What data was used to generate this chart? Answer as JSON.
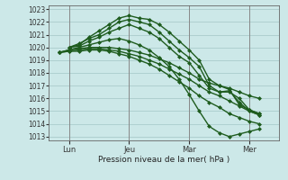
{
  "bg_color": "#cce8e8",
  "grid_color": "#aacccc",
  "line_color": "#1e5c1e",
  "ylim": [
    1013,
    1023
  ],
  "yticks": [
    1013,
    1014,
    1015,
    1016,
    1017,
    1018,
    1019,
    1020,
    1021,
    1022,
    1023
  ],
  "xlabel": "Pression niveau de la mer( hPa )",
  "xtick_labels": [
    "Lun",
    "Jeu",
    "Mar",
    "Mer"
  ],
  "xtick_positions": [
    1,
    4,
    7,
    10
  ],
  "xlim": [
    0,
    11.5
  ],
  "lines": [
    {
      "x": [
        1,
        1.5,
        2,
        2.5,
        3,
        3.5,
        4,
        4.5,
        5,
        5.5,
        6,
        6.5,
        7,
        7.5,
        8,
        8.5,
        9,
        9.5,
        10,
        10.5
      ],
      "y": [
        1020.0,
        1020.2,
        1020.8,
        1021.3,
        1021.8,
        1022.3,
        1022.5,
        1022.3,
        1022.2,
        1021.8,
        1021.2,
        1020.5,
        1019.8,
        1019.0,
        1017.5,
        1017.0,
        1016.7,
        1015.5,
        1015.1,
        1014.8
      ],
      "marker": "D",
      "markersize": 2.0,
      "lw": 1.0
    },
    {
      "x": [
        1,
        1.5,
        2,
        2.5,
        3,
        3.5,
        4,
        4.5,
        5,
        5.5,
        6,
        6.5,
        7,
        7.5,
        8,
        8.5,
        9,
        9.5,
        10,
        10.5
      ],
      "y": [
        1020.0,
        1020.3,
        1020.7,
        1021.0,
        1021.5,
        1022.0,
        1022.2,
        1022.0,
        1021.8,
        1021.2,
        1020.5,
        1019.8,
        1019.2,
        1018.5,
        1017.0,
        1016.5,
        1016.6,
        1015.7,
        1015.0,
        1014.7
      ],
      "marker": "D",
      "markersize": 2.0,
      "lw": 1.0
    },
    {
      "x": [
        1,
        1.5,
        2,
        2.5,
        3,
        3.5,
        4,
        4.5,
        5,
        5.5,
        6,
        6.5,
        7,
        7.5,
        8,
        8.5,
        9,
        9.5,
        10,
        10.5
      ],
      "y": [
        1020.0,
        1020.1,
        1020.5,
        1020.8,
        1021.2,
        1021.5,
        1021.8,
        1021.5,
        1021.2,
        1020.7,
        1020.0,
        1019.3,
        1018.8,
        1017.8,
        1016.8,
        1016.5,
        1016.5,
        1016.0,
        1015.1,
        1014.8
      ],
      "marker": "D",
      "markersize": 2.0,
      "lw": 1.0
    },
    {
      "x": [
        0.5,
        1,
        1.5,
        2,
        2.5,
        3,
        3.5,
        4,
        4.5,
        5,
        5.5,
        6,
        6.5,
        7,
        7.5,
        8,
        8.5,
        9,
        9.5,
        10,
        10.5
      ],
      "y": [
        1019.6,
        1019.8,
        1019.9,
        1020.0,
        1020.0,
        1020.0,
        1019.9,
        1019.8,
        1019.6,
        1019.4,
        1019.1,
        1018.8,
        1018.4,
        1018.0,
        1017.5,
        1017.2,
        1017.0,
        1016.8,
        1016.5,
        1016.2,
        1016.0
      ],
      "marker": "D",
      "markersize": 2.0,
      "lw": 1.0
    },
    {
      "x": [
        0.5,
        1,
        1.5,
        2,
        2.5,
        3,
        3.5,
        4,
        4.5,
        5,
        5.5,
        6,
        6.5,
        7,
        7.5,
        8,
        8.5,
        9,
        9.5,
        10,
        10.5
      ],
      "y": [
        1019.6,
        1019.7,
        1019.8,
        1019.9,
        1019.9,
        1019.8,
        1019.7,
        1019.5,
        1019.3,
        1019.0,
        1018.7,
        1018.3,
        1017.9,
        1017.5,
        1017.0,
        1016.5,
        1016.2,
        1015.8,
        1015.4,
        1015.0,
        1014.7
      ],
      "marker": "D",
      "markersize": 2.0,
      "lw": 1.0
    },
    {
      "x": [
        0.5,
        1,
        1.5,
        2,
        2.5,
        3,
        3.5,
        4,
        4.5,
        5,
        5.5,
        6,
        6.5,
        7,
        7.5,
        8,
        8.5,
        9,
        9.5,
        10,
        10.5
      ],
      "y": [
        1019.6,
        1019.7,
        1019.7,
        1019.8,
        1019.8,
        1019.7,
        1019.5,
        1019.3,
        1019.0,
        1018.7,
        1018.3,
        1017.8,
        1017.3,
        1016.8,
        1016.2,
        1015.7,
        1015.3,
        1014.8,
        1014.5,
        1014.2,
        1014.0
      ],
      "marker": "D",
      "markersize": 2.0,
      "lw": 1.0
    },
    {
      "x": [
        0.5,
        1,
        1.5,
        2,
        2.5,
        3,
        3.5,
        4,
        4.5,
        5,
        5.5,
        6,
        6.5,
        7,
        7.5,
        8,
        8.5,
        9,
        9.5,
        10,
        10.5
      ],
      "y": [
        1019.6,
        1019.8,
        1020.0,
        1020.2,
        1020.4,
        1020.6,
        1020.7,
        1020.5,
        1020.2,
        1019.8,
        1019.2,
        1018.5,
        1017.5,
        1016.3,
        1015.0,
        1013.8,
        1013.3,
        1013.0,
        1013.2,
        1013.4,
        1013.6
      ],
      "marker": "D",
      "markersize": 2.0,
      "lw": 1.0
    }
  ],
  "vlines_x": [
    1,
    4,
    7,
    10
  ],
  "vline_color": "#888888"
}
